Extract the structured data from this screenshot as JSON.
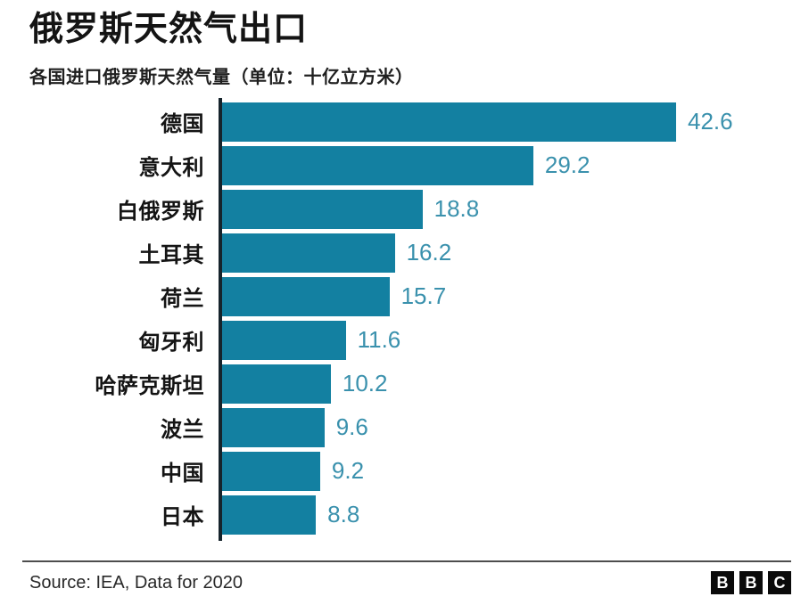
{
  "header": {
    "title": "俄罗斯天然气出口",
    "subtitle": "各国进口俄罗斯天然气量（单位：十亿立方米）"
  },
  "chart_data": {
    "type": "bar",
    "orientation": "horizontal",
    "title": "俄罗斯天然气出口",
    "subtitle": "各国进口俄罗斯天然气量（单位：十亿立方米）",
    "categories": [
      "德国",
      "意大利",
      "白俄罗斯",
      "土耳其",
      "荷兰",
      "匈牙利",
      "哈萨克斯坦",
      "波兰",
      "中国",
      "日本"
    ],
    "values": [
      42.6,
      29.2,
      18.8,
      16.2,
      15.7,
      11.6,
      10.2,
      9.6,
      9.2,
      8.8
    ],
    "xlim": [
      0,
      42.6
    ],
    "grid": false,
    "legend": false,
    "value_labels_position": "outside-end",
    "bar_color": "#1380A1",
    "value_label_color": "#3A91AD",
    "axis_color": "#16242c"
  },
  "footer": {
    "source": "Source: IEA, Data for 2020",
    "logo_letters": [
      "B",
      "B",
      "C"
    ]
  }
}
